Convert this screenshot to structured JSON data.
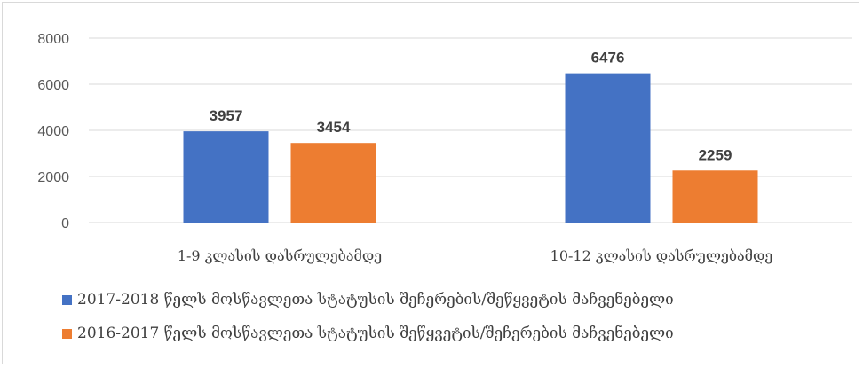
{
  "chart_data": {
    "type": "bar",
    "title": "",
    "xlabel": "",
    "ylabel": "",
    "categories": [
      "1-9 კლასის დასრულებამდე",
      "10-12 კლასის დასრულებამდე"
    ],
    "series": [
      {
        "name": "2017-2018 წელს მოსწავლეთა სტატუსის შეჩერების/შეწყვეტის მაჩვენებელი",
        "values": [
          3957,
          6476
        ],
        "color": "#4472c4"
      },
      {
        "name": "2016-2017 წელს მოსწავლეთა სტატუსის შეწყვეტის/შეჩერების მაჩვენებელი",
        "values": [
          3454,
          2259
        ],
        "color": "#ed7d31"
      }
    ],
    "ylim": [
      0,
      8000
    ],
    "yticks": [
      0,
      2000,
      4000,
      6000,
      8000
    ],
    "grid": true,
    "legend_position": "bottom",
    "data_labels": true
  }
}
